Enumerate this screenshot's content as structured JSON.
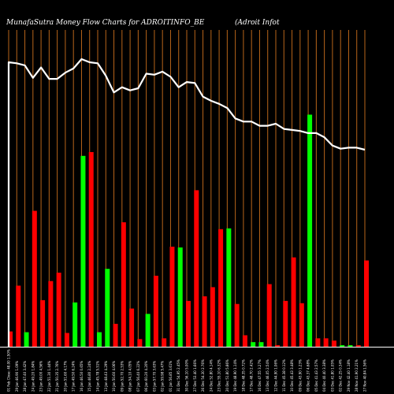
{
  "header": {
    "title_left": "MunafaSutra  Money Flow  Charts for ADROITINFO_BE",
    "title_right": "(Adroit Infot"
  },
  "colors": {
    "background": "#000000",
    "gridline": "#b8651a",
    "up_bar": "#00ff00",
    "down_bar": "#ff0000",
    "line": "#ffffff",
    "axis": "#ffffff"
  },
  "chart_data": {
    "type": "bar",
    "title": "",
    "xlabel": "",
    "ylabel": "",
    "categories": [
      "01 Feb Close: 48.00 1.50%",
      "29 Jan 46.90 1.09%",
      "28 Jan 47.40 3.42%",
      "24 Jan 49.20 1.84%",
      "23 Jan 49.00 4.56%",
      "22 Jan 51.30 1.44%",
      "21 Jan 50.35 2.76%",
      "20 Jan 51.60 4.17%",
      "17 Jan 49.50 6.24%",
      "16 Jan 46.50 0.65%",
      "15 Jan 46.80 2.24%",
      "14 Jan 45.78 5.51%",
      "13 Jan 48.43 4.29%",
      "10 Jan 50.60 4.06%",
      "09 Jan 52.70 2.53%",
      "08 Jan 54.10 4.05%",
      "07 Jan 56.40 6.22%",
      "06 Jan 60.20 4.20%",
      "03 Jan 57.70 3.63%",
      "02 Jan 59.98 5.47%",
      "01 Jan 56.85 3.61%",
      "31 Dec 54.95 2.45%",
      "30 Dec 56.10 5.00%",
      "27 Dec 53.40 1.66%",
      "26 Dec 54.30 2.76%",
      "24 Dec 52.80 4.14%",
      "23 Dec 55.10 6.32%",
      "20 Dec 51.80 5.86%",
      "19 Dec 48.90 1.14%",
      "18 Dec 48.35 0.72%",
      "17 Dec 48.70 2.42%",
      "16 Dec 47.55 3.27%",
      "13 Dec 46.05 2.54%",
      "12 Dec 44.90 1.06%",
      "11 Dec 45.38 0.12%",
      "10 Dec 45.43 3.48%",
      "09 Dec 43.90 1.23%",
      "06 Dec 43.37 4.68%",
      "05 Dec 41.43 2.57%",
      "04 Dec 40.40 3.38%",
      "03 Dec 41.80 1.05%",
      "02 Dec 42.25 0.34%",
      "29 Nov 42.40 1.18%",
      "28 Nov 41.90 2.21%",
      "27 Nov 40.84 1.56%"
    ],
    "bar_direction": [
      "down",
      "down",
      "up",
      "down",
      "down",
      "down",
      "down",
      "down",
      "up",
      "up",
      "down",
      "up",
      "up",
      "down",
      "down",
      "down",
      "down",
      "up",
      "down",
      "down",
      "down",
      "up",
      "down",
      "down",
      "down",
      "down",
      "down",
      "up",
      "down",
      "down",
      "up",
      "up",
      "down",
      "down",
      "down",
      "down",
      "down",
      "up",
      "down",
      "down",
      "down",
      "up",
      "up",
      "down",
      "down"
    ],
    "bar_values": [
      20,
      80,
      19,
      178,
      61,
      86,
      97,
      18,
      58,
      250,
      255,
      19,
      102,
      30,
      163,
      50,
      10,
      43,
      93,
      11,
      131,
      130,
      60,
      205,
      66,
      78,
      154,
      155,
      56,
      15,
      6,
      6,
      82,
      2,
      60,
      117,
      57,
      304,
      11,
      11,
      8,
      2,
      2,
      2,
      113
    ],
    "line_values": [
      101,
      100,
      98,
      86,
      96,
      85,
      85,
      91,
      95,
      104,
      101,
      100,
      88,
      72,
      77,
      74,
      76,
      90,
      89,
      92,
      87,
      77,
      82,
      81,
      68,
      64,
      61,
      57,
      47,
      44,
      44,
      40,
      40,
      42,
      37,
      36,
      35,
      33,
      33,
      29,
      21,
      18,
      19,
      19,
      17
    ],
    "bar_ylim": [
      0,
      320
    ],
    "line_ylim": [
      0,
      110
    ],
    "grid": true
  }
}
